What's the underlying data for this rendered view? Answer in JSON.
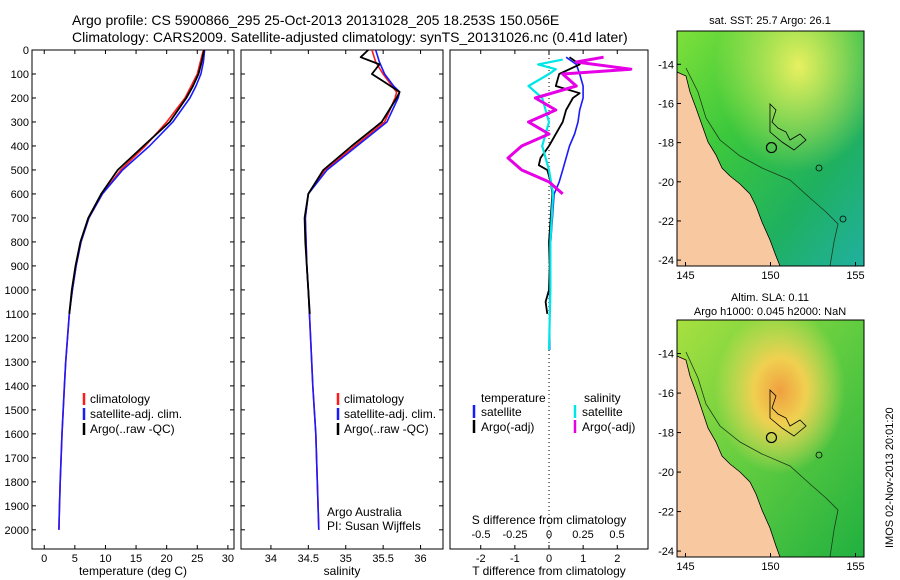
{
  "header": {
    "line1": "Argo profile: CS 5900866_295 25-Oct-2013 20131028_205 18.253S 150.056E",
    "line2": "Climatology: CARS2009. Satellite-adjusted climatology: synTS_20131026.nc (0.41d later)"
  },
  "colors": {
    "climatology": "#ff1a1a",
    "satellite": "#1a1aff",
    "argo": "#000000",
    "sal_satellite": "#00e6e6",
    "sal_argo": "#e600e6",
    "land": "#f8c8a0"
  },
  "chart_data": [
    {
      "type": "line",
      "id": "temperature",
      "xlabel": "temperature (deg C)",
      "ylabel": "",
      "xlim": [
        -2,
        31
      ],
      "ylim": [
        0,
        2080
      ],
      "xticks": [
        "0",
        "5",
        "10",
        "15",
        "20",
        "25",
        "30"
      ],
      "yticks": [
        "0",
        "100",
        "200",
        "300",
        "400",
        "500",
        "600",
        "700",
        "800",
        "900",
        "1000",
        "1100",
        "1200",
        "1300",
        "1400",
        "1500",
        "1600",
        "1700",
        "1800",
        "1900",
        "2000"
      ],
      "legend": [
        "climatology",
        "satellite-adj. clim.",
        "Argo(..raw -QC)"
      ],
      "series": [
        {
          "name": "climatology",
          "depth": [
            0,
            50,
            100,
            150,
            200,
            300,
            400,
            500,
            600,
            700,
            800,
            900,
            1000,
            1100,
            1200,
            1300,
            1400,
            1500,
            1600,
            1700,
            1800,
            1900,
            2000
          ],
          "values": [
            26,
            25.5,
            25,
            24,
            23,
            20,
            16.5,
            12.5,
            9.5,
            7.3,
            6,
            5.2,
            4.6,
            4.1,
            3.8,
            3.5,
            3.3,
            3.1,
            2.9,
            2.75,
            2.6,
            2.5,
            2.4
          ]
        },
        {
          "name": "satellite-adj. clim.",
          "depth": [
            0,
            50,
            100,
            150,
            200,
            300,
            400,
            500,
            600,
            700,
            800,
            900,
            1000,
            1100,
            1200,
            1300,
            1400,
            1500,
            1600,
            1700,
            1800,
            1900,
            2000
          ],
          "values": [
            26.2,
            26,
            25.6,
            24.8,
            23.8,
            21,
            17.2,
            12.8,
            9.5,
            7.3,
            6,
            5.2,
            4.6,
            4.1,
            3.8,
            3.5,
            3.3,
            3.1,
            2.9,
            2.75,
            2.6,
            2.5,
            2.4
          ]
        },
        {
          "name": "Argo(..raw -QC)",
          "depth": [
            0,
            50,
            100,
            150,
            200,
            300,
            400,
            500,
            600,
            700,
            800,
            900,
            1000,
            1100
          ],
          "values": [
            26.1,
            25.7,
            25.2,
            24.3,
            23.2,
            20.5,
            16.2,
            12,
            9.3,
            7.2,
            5.9,
            5.1,
            4.5,
            4.1
          ]
        }
      ]
    },
    {
      "type": "line",
      "id": "salinity",
      "xlabel": "salinity",
      "xlim": [
        33.6,
        36.3
      ],
      "ylim": [
        0,
        2080
      ],
      "xticks": [
        "34",
        "34.5",
        "35",
        "35.5",
        "36"
      ],
      "legend": [
        "climatology",
        "satellite-adj. clim.",
        "Argo(..raw -QC)"
      ],
      "credit": [
        "Argo Australia",
        "PI: Susan Wijffels"
      ],
      "series": [
        {
          "name": "climatology",
          "depth": [
            0,
            50,
            100,
            150,
            175,
            200,
            300,
            400,
            500,
            600,
            700,
            800,
            900,
            1000,
            1200,
            1400,
            1600,
            1800,
            2000
          ],
          "values": [
            35.35,
            35.4,
            35.5,
            35.62,
            35.68,
            35.66,
            35.52,
            35.12,
            34.72,
            34.5,
            34.46,
            34.47,
            34.48,
            34.5,
            34.53,
            34.56,
            34.6,
            34.62,
            34.64
          ]
        },
        {
          "name": "satellite-adj. clim.",
          "depth": [
            0,
            50,
            100,
            150,
            175,
            200,
            300,
            400,
            500,
            600,
            700,
            800,
            900,
            1000,
            1200,
            1400,
            1600,
            1800,
            2000
          ],
          "values": [
            35.4,
            35.45,
            35.52,
            35.64,
            35.72,
            35.7,
            35.55,
            35.15,
            34.75,
            34.5,
            34.46,
            34.47,
            34.48,
            34.5,
            34.53,
            34.56,
            34.6,
            34.62,
            34.64
          ]
        },
        {
          "name": "Argo(..raw -QC)",
          "depth": [
            0,
            30,
            60,
            100,
            140,
            175,
            200,
            300,
            400,
            500,
            600,
            700,
            800,
            900,
            1000,
            1100
          ],
          "values": [
            35.3,
            35.2,
            35.45,
            35.35,
            35.55,
            35.72,
            35.68,
            35.48,
            35.08,
            34.7,
            34.5,
            34.45,
            34.46,
            34.48,
            34.5,
            34.52
          ]
        }
      ]
    },
    {
      "type": "line",
      "id": "difference",
      "xlabel": "T difference from climatology",
      "xlabel_top": "S difference from climatology",
      "xlim": [
        -2.9,
        2.9
      ],
      "ylim": [
        0,
        2080
      ],
      "xticks": [
        "-2",
        "-1",
        "0",
        "1",
        "2"
      ],
      "xticks_top": [
        "-0.5",
        "-0.25",
        "0",
        "0.25",
        "0.5"
      ],
      "legend_headers": [
        "temperature",
        "salinity"
      ],
      "legend": [
        "satellite",
        "Argo(-adj)",
        "satellite",
        "Argo(-adj)"
      ],
      "series": [
        {
          "name": "temperature satellite",
          "depth": [
            30,
            60,
            100,
            150,
            200,
            250,
            300,
            350,
            400,
            450,
            500,
            550,
            600,
            700,
            800,
            900,
            1000,
            1100,
            1200,
            1250
          ],
          "values": [
            0.5,
            0.8,
            0.9,
            1.0,
            1.0,
            0.9,
            0.85,
            0.75,
            0.6,
            0.5,
            0.4,
            0.3,
            0.15,
            0.1,
            0.05,
            0.05,
            0.02,
            0.02,
            0.02,
            0.02
          ]
        },
        {
          "name": "temperature Argo(-adj)",
          "depth": [
            30,
            60,
            100,
            150,
            180,
            200,
            250,
            300,
            350,
            400,
            450,
            480,
            500,
            550,
            600,
            700,
            800,
            900,
            1000,
            1050,
            1100
          ],
          "values": [
            0.6,
            0.9,
            0.3,
            0.2,
            0.9,
            0.7,
            0.5,
            0.4,
            0.2,
            0.0,
            -0.25,
            -0.3,
            -0.05,
            0.05,
            0.1,
            0.05,
            0.0,
            0.02,
            0.0,
            -0.1,
            -0.05
          ]
        },
        {
          "name": "salinity satellite",
          "depth": [
            40,
            60,
            80,
            100,
            150,
            200,
            300,
            400,
            500,
            600,
            700,
            800,
            1000,
            1250
          ],
          "values": [
            0.1,
            -0.08,
            0.05,
            0.0,
            -0.15,
            -0.05,
            0.0,
            -0.05,
            0.0,
            0.03,
            0.02,
            0.01,
            0.01,
            0.0
          ]
        },
        {
          "name": "salinity Argo(-adj)",
          "depth": [
            30,
            50,
            80,
            100,
            150,
            200,
            250,
            300,
            350,
            400,
            450,
            500,
            550,
            600
          ],
          "values": [
            0.4,
            0.2,
            0.6,
            0.1,
            0.2,
            -0.1,
            0.05,
            -0.15,
            0.0,
            -0.2,
            -0.3,
            -0.2,
            0.0,
            0.1
          ]
        }
      ]
    },
    {
      "type": "heatmap",
      "id": "sst-map",
      "title": "sat. SST: 25.7 Argo: 26.1",
      "xticks": [
        "145",
        "150",
        "155"
      ],
      "yticks": [
        "-14",
        "-16",
        "-18",
        "-20",
        "-22",
        "-24"
      ],
      "xlim": [
        144.5,
        155.5
      ],
      "ylim": [
        -24.3,
        -12.3
      ],
      "argo_position": [
        150.056,
        -18.253
      ]
    },
    {
      "type": "heatmap",
      "id": "sla-map",
      "title_line1": "Altim. SLA: 0.11",
      "title_line2": "Argo h1000: 0.045 h2000: NaN",
      "xticks": [
        "145",
        "150",
        "155"
      ],
      "yticks": [
        "-14",
        "-16",
        "-18",
        "-20",
        "-22",
        "-24"
      ],
      "xlim": [
        144.5,
        155.5
      ],
      "ylim": [
        -24.3,
        -12.3
      ],
      "argo_position": [
        150.056,
        -18.253
      ]
    }
  ],
  "stamp": "IMOS 02-Nov-2013 20:01:20"
}
